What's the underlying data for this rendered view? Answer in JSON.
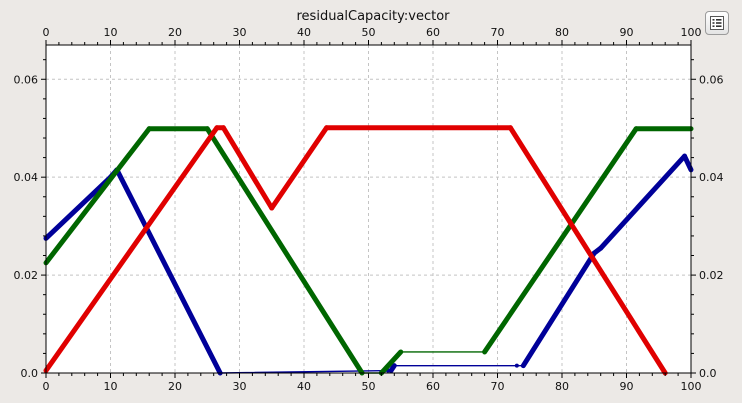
{
  "chart_data": {
    "type": "line",
    "title": "residualCapacity:vector",
    "xlim": [
      0,
      100
    ],
    "ylim": [
      0,
      0.067
    ],
    "x_ticks": [
      0,
      10,
      20,
      30,
      40,
      50,
      60,
      70,
      80,
      90,
      100
    ],
    "y_ticks": [
      0.0,
      0.02,
      0.04,
      0.06
    ],
    "y_tick_labels": [
      "0.0",
      "0.02",
      "0.04",
      "0.06"
    ],
    "grid": true,
    "series": [
      {
        "color": "#000099",
        "points": [
          [
            0,
            0.0275
          ],
          [
            10,
            0.04
          ],
          [
            11,
            0.0415
          ],
          [
            27,
            0.0
          ],
          [
            53,
            0.0005
          ],
          [
            53.5,
            0.0005
          ],
          [
            54,
            0.0015
          ],
          [
            73,
            0.0015
          ],
          [
            74,
            0.0015
          ],
          [
            85,
            0.0245
          ],
          [
            86,
            0.0255
          ],
          [
            99,
            0.0443
          ],
          [
            100,
            0.0415
          ]
        ]
      },
      {
        "color": "#006600",
        "points": [
          [
            0,
            0.0225
          ],
          [
            16,
            0.0499
          ],
          [
            25,
            0.0499
          ],
          [
            49,
            0.0
          ],
          [
            52,
            0.0
          ],
          [
            55,
            0.0043
          ],
          [
            68,
            0.0043
          ],
          [
            91.5,
            0.0499
          ],
          [
            100,
            0.0499
          ]
        ]
      },
      {
        "color": "#e00000",
        "points": [
          [
            0,
            0.0005
          ],
          [
            26.5,
            0.0501
          ],
          [
            27.5,
            0.0501
          ],
          [
            35,
            0.0337
          ],
          [
            43.5,
            0.0501
          ],
          [
            72,
            0.0501
          ],
          [
            96,
            0.0
          ]
        ]
      }
    ]
  },
  "legend_button": {
    "icon": "legend-list-icon"
  }
}
